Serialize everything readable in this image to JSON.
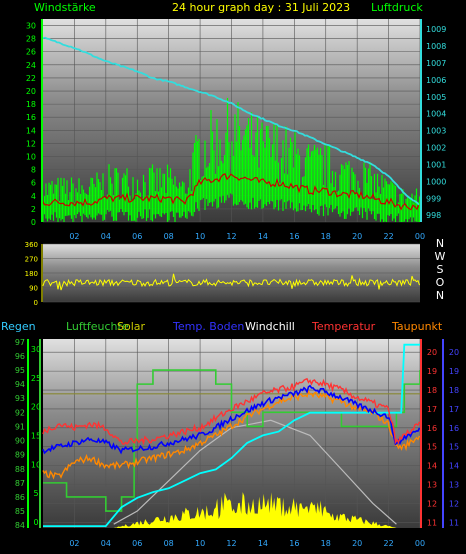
{
  "title": "24 hour graph day : 31 Juli 2023",
  "x_ticks": [
    "02",
    "04",
    "06",
    "08",
    "10",
    "12",
    "14",
    "16",
    "18",
    "20",
    "22",
    "00"
  ],
  "colors": {
    "background": "#000000",
    "wind": "#00ff00",
    "gust_red": "#cc0000",
    "pressure": "#33dddd",
    "direction": "#ffff00",
    "humidity": "#33cc33",
    "solar": "#ffff00",
    "soil_temp": "#00ffff",
    "dewpoint": "#ff8800",
    "temperature": "#ff3333",
    "windchill": "#0000ff",
    "rain": "#00ff00",
    "right_axis": "#4444ff",
    "left_axis_blue": "#33ccff"
  },
  "chart_data": [
    {
      "type": "line",
      "panel": "top",
      "left_label": "Windstärke",
      "right_label": "Luftdruck",
      "left_ticks": [
        "0",
        "2",
        "4",
        "6",
        "8",
        "10",
        "12",
        "14",
        "16",
        "18",
        "20",
        "22",
        "24",
        "26",
        "28",
        "30"
      ],
      "right_ticks": [
        "998",
        "999",
        "1000",
        "1001",
        "1002",
        "1003",
        "1004",
        "1005",
        "1006",
        "1007",
        "1008",
        "1009"
      ],
      "ylim_left": [
        0,
        31
      ],
      "ylim_right": [
        997.6,
        1009.6
      ],
      "series": [
        {
          "key": "pressure",
          "x": [
            0,
            1,
            2,
            3,
            4,
            5,
            6,
            7,
            8,
            9,
            10,
            11,
            12,
            13,
            14,
            15,
            16,
            17,
            18,
            19,
            20,
            21,
            22,
            23,
            24
          ],
          "values": [
            1008.5,
            1008.2,
            1007.9,
            1007.5,
            1007.1,
            1006.8,
            1006.5,
            1006.1,
            1005.9,
            1005.6,
            1005.3,
            1005.0,
            1004.6,
            1004.1,
            1003.7,
            1003.3,
            1003.0,
            1002.6,
            1002.2,
            1001.8,
            1001.4,
            1001.0,
            1000.3,
            999.3,
            998.6
          ]
        },
        {
          "key": "wind_avg",
          "x": [
            0,
            1,
            2,
            3,
            4,
            5,
            6,
            7,
            8,
            9,
            10,
            11,
            12,
            13,
            14,
            15,
            16,
            17,
            18,
            19,
            20,
            21,
            22,
            23,
            24
          ],
          "values": [
            4,
            4,
            4,
            4,
            5,
            5,
            5,
            5,
            5,
            4,
            9,
            10,
            11,
            10,
            9,
            9,
            8,
            7,
            7,
            6,
            6,
            5,
            4,
            3,
            3
          ]
        }
      ]
    },
    {
      "type": "line",
      "panel": "middle",
      "left_ticks": [
        "0",
        "90",
        "180",
        "270",
        "360"
      ],
      "right_letters": [
        "N",
        "W",
        "S",
        "O",
        "N"
      ],
      "ylim": [
        0,
        360
      ],
      "series": [
        {
          "key": "direction",
          "x": [
            0,
            24
          ],
          "values": [
            120,
            120
          ]
        }
      ]
    },
    {
      "type": "line",
      "panel": "bottom",
      "legend": [
        "Regen",
        "Luftfeuchte",
        "Solar",
        "Temp. Boden",
        "Windchill",
        "Temperatur",
        "Taupunkt"
      ],
      "left_ticks_humidity": [
        "84",
        "85",
        "86",
        "87",
        "88",
        "89",
        "90",
        "91",
        "92",
        "93",
        "94",
        "95",
        "96",
        "97"
      ],
      "left_ticks_rain": [
        "0",
        "5",
        "10",
        "15",
        "20",
        "25",
        "30"
      ],
      "right_ticks_temp": [
        "11",
        "12",
        "13",
        "14",
        "15",
        "16",
        "17",
        "18",
        "19",
        "20"
      ],
      "right_ticks_blue": [
        "11",
        "12",
        "13",
        "14",
        "15",
        "16",
        "17",
        "18",
        "19",
        "20"
      ],
      "ylim_temp": [
        10.7,
        20.7
      ],
      "ylim_humidity": [
        83.8,
        97.2
      ],
      "series": [
        {
          "key": "humidity",
          "x": [
            0,
            1,
            1.5,
            2,
            3,
            4,
            5,
            5.8,
            6,
            7,
            8,
            9,
            10,
            11,
            12,
            13,
            14,
            15,
            16,
            17,
            18,
            19,
            20,
            21,
            22,
            22.5,
            23,
            24
          ],
          "values": [
            87,
            87,
            86,
            86,
            86,
            85,
            86,
            90,
            94,
            95,
            95,
            95,
            95,
            94,
            92,
            91,
            92,
            92,
            92,
            92,
            92,
            91,
            91,
            91,
            91,
            92,
            94,
            95
          ]
        },
        {
          "key": "temperature",
          "x": [
            0,
            1,
            2,
            3,
            4,
            5,
            6,
            7,
            8,
            9,
            10,
            11,
            12,
            13,
            14,
            15,
            16,
            17,
            18,
            19,
            20,
            21,
            22,
            22.5,
            23,
            24
          ],
          "values": [
            15.8,
            16.2,
            16.0,
            16.2,
            16.0,
            15.2,
            15.3,
            15.4,
            15.6,
            15.8,
            16.0,
            16.5,
            17.0,
            17.4,
            17.8,
            18.0,
            18.2,
            18.5,
            18.3,
            18.0,
            17.6,
            17.3,
            17.0,
            15.2,
            15.6,
            16.2
          ]
        },
        {
          "key": "windchill",
          "x": [
            0,
            1,
            2,
            3,
            4,
            5,
            6,
            7,
            8,
            9,
            10,
            11,
            12,
            13,
            14,
            15,
            16,
            17,
            18,
            19,
            20,
            21,
            22,
            22.5,
            23,
            24
          ],
          "values": [
            14.8,
            15.0,
            15.2,
            15.4,
            15.2,
            14.8,
            14.9,
            15.0,
            15.2,
            15.4,
            15.6,
            16.0,
            16.5,
            16.9,
            17.3,
            17.6,
            17.8,
            18.1,
            17.9,
            17.6,
            17.2,
            16.9,
            16.6,
            15.1,
            15.5,
            15.9
          ]
        },
        {
          "key": "dewpoint",
          "x": [
            0,
            1,
            2,
            3,
            4,
            5,
            6,
            7,
            8,
            9,
            10,
            11,
            12,
            13,
            14,
            15,
            16,
            17,
            18,
            19,
            20,
            21,
            22,
            22.5,
            23,
            24
          ],
          "values": [
            13.6,
            13.4,
            14.2,
            14.4,
            14.0,
            14.0,
            14.2,
            14.4,
            14.6,
            14.8,
            15.2,
            15.6,
            16.1,
            16.6,
            17.0,
            17.4,
            17.6,
            17.8,
            17.6,
            17.4,
            17.0,
            16.8,
            16.2,
            15.0,
            15.0,
            15.6
          ]
        },
        {
          "key": "soil_temp",
          "x": [
            0,
            4,
            5,
            6,
            7,
            8,
            9,
            10,
            11,
            12,
            13,
            14,
            15,
            16,
            17,
            18,
            19,
            20,
            21,
            22,
            22.8,
            23,
            24
          ],
          "values": [
            10.8,
            10.8,
            11.8,
            12.3,
            12.6,
            12.8,
            13.2,
            13.6,
            13.8,
            14.4,
            15.2,
            15.6,
            15.8,
            16.4,
            16.8,
            16.8,
            16.8,
            16.8,
            16.8,
            16.8,
            16.8,
            20.4,
            20.4
          ]
        },
        {
          "key": "rain_line",
          "x": [
            0,
            24
          ],
          "values": [
            17.8,
            17.8
          ]
        },
        {
          "key": "solar_bell",
          "x": [
            4.5,
            6,
            8,
            10,
            12,
            14.5,
            17,
            19,
            21,
            22.5
          ],
          "values": [
            10.9,
            11.6,
            13.2,
            14.8,
            16.0,
            16.4,
            15.6,
            13.8,
            12.0,
            10.9
          ]
        }
      ]
    }
  ]
}
